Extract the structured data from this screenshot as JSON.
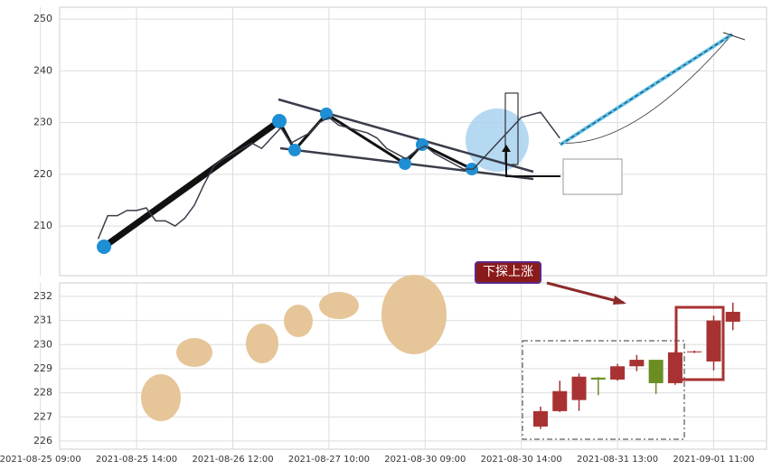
{
  "chart_data": [
    {
      "type": "line",
      "color": "#3a3d4a",
      "ylim": [
        200.4,
        252.3
      ],
      "yticks": [
        210,
        220,
        230,
        240,
        250
      ],
      "xlim": [
        2,
        75.5
      ],
      "grid": true,
      "x": [
        6,
        7,
        8,
        9,
        10,
        11,
        12,
        13,
        14,
        15,
        16,
        17,
        18,
        19,
        20,
        21,
        22,
        23,
        24,
        25,
        26,
        27,
        28,
        29,
        30,
        31,
        32,
        33,
        34,
        35,
        36,
        37,
        38,
        39,
        40,
        41,
        42,
        43,
        44,
        45,
        46,
        47,
        48,
        49,
        50,
        51,
        52,
        53,
        54
      ],
      "values": [
        207.5,
        212,
        212,
        213,
        213,
        213.5,
        211,
        211,
        210,
        211.5,
        214,
        218,
        221.5,
        223,
        224,
        225,
        226,
        225,
        227,
        229,
        226,
        227,
        228,
        230,
        231,
        229.5,
        229,
        228.5,
        228,
        227,
        225,
        224,
        223,
        224.5,
        225.5,
        224,
        223,
        222,
        221,
        221,
        223,
        225,
        227,
        229,
        231,
        231.5,
        232,
        229.5,
        227
      ]
    },
    {
      "type": "candlestick",
      "up_color": "#a83232",
      "down_color": "#6b8e23",
      "ylim": [
        225.66,
        232.56
      ],
      "yticks": [
        226,
        227,
        228,
        229,
        230,
        231,
        232
      ],
      "xlim": [
        2,
        75.5
      ],
      "grid": true,
      "xticks": [
        {
          "value": 0,
          "label": "2021-08-25 09:00"
        },
        {
          "value": 10,
          "label": "2021-08-25 14:00"
        },
        {
          "value": 20,
          "label": "2021-08-26 12:00"
        },
        {
          "value": 30,
          "label": "2021-08-27 10:00"
        },
        {
          "value": 40,
          "label": "2021-08-30 09:00"
        },
        {
          "value": 50,
          "label": "2021-08-30 14:00"
        },
        {
          "value": 60,
          "label": "2021-08-31 13:00"
        },
        {
          "value": 70,
          "label": "2021-09-01 11:00"
        }
      ],
      "x": [
        52,
        54,
        56,
        58,
        60,
        62,
        64,
        66,
        68,
        70,
        72
      ],
      "open": [
        226.6,
        227.24,
        227.7,
        228.63,
        228.55,
        229.1,
        229.37,
        228.4,
        229.68,
        229.3,
        230.95
      ],
      "high": [
        227.43,
        228.5,
        228.8,
        228.65,
        229.2,
        229.57,
        229.37,
        229.75,
        229.75,
        231.2,
        231.74
      ],
      "low": [
        226.5,
        227.2,
        227.25,
        227.9,
        228.5,
        228.9,
        227.95,
        228.33,
        229.65,
        228.93,
        230.6
      ],
      "close": [
        227.24,
        228.07,
        228.67,
        228.55,
        229.1,
        229.37,
        228.4,
        229.68,
        229.72,
        231.0,
        231.36
      ],
      "annotation": "下探上涨"
    }
  ]
}
